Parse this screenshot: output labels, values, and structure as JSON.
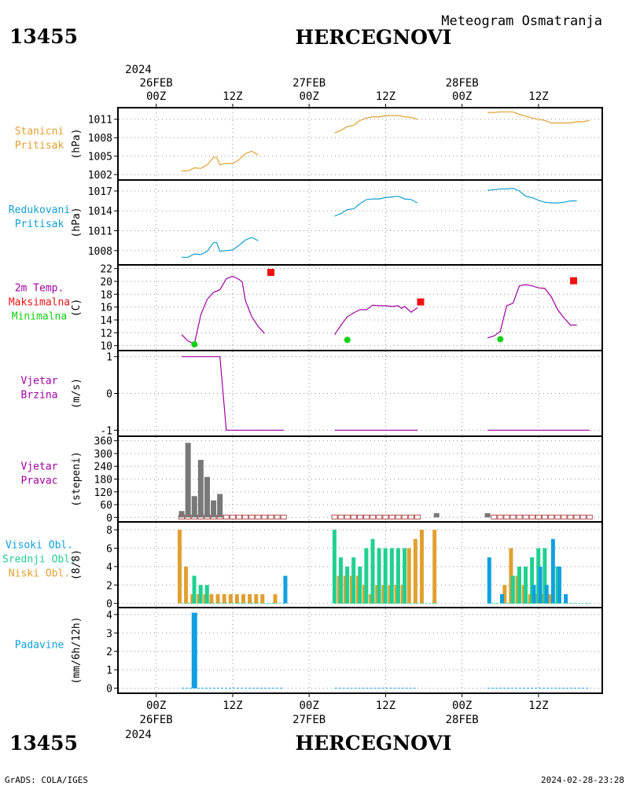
{
  "header": {
    "station_id": "13455",
    "station_name": "HERCEGNOVI",
    "product": "Meteogram Osmatranja"
  },
  "footer": {
    "station_id": "13455",
    "station_name": "HERCEGNOVI",
    "credit": "GrADS: COLA/IGES",
    "timestamp": "2024-02-28-23:28"
  },
  "time_axis": {
    "year": "2024",
    "top_ticks": [
      {
        "hour": 0,
        "hour_label": "00Z",
        "date_label": "26FEB"
      },
      {
        "hour": 12,
        "hour_label": "12Z",
        "date_label": ""
      },
      {
        "hour": 24,
        "hour_label": "00Z",
        "date_label": "27FEB"
      },
      {
        "hour": 36,
        "hour_label": "12Z",
        "date_label": ""
      },
      {
        "hour": 48,
        "hour_label": "00Z",
        "date_label": "28FEB"
      },
      {
        "hour": 60,
        "hour_label": "12Z",
        "date_label": ""
      }
    ]
  },
  "colors": {
    "station_pressure": "#e0a030",
    "reduced_pressure": "#10a0d0",
    "temperature": "#a000a0",
    "tmax": "#f01010",
    "tmin": "#10d010",
    "wind": "#a000a0",
    "wind_dir": "#787878",
    "wind_dir_calm": "#b05050",
    "high_cloud": "#10a0e0",
    "mid_cloud": "#20d090",
    "low_cloud": "#e0a030",
    "precip": "#10a0e0"
  },
  "chart_data": [
    {
      "type": "line",
      "panel_labels": [
        {
          "text": "Stanicni",
          "color": "#e0a030"
        },
        {
          "text": "Pritisak",
          "color": "#e0a030"
        }
      ],
      "ylabel": "(hPa)",
      "ylim": [
        1001.5,
        1012.5
      ],
      "yticks": [
        1002,
        1005,
        1008,
        1011
      ],
      "color": "#e0a030",
      "segments": [
        [
          [
            4,
            1002.6
          ],
          [
            5,
            1002.6
          ],
          [
            6,
            1003.1
          ],
          [
            7,
            1003.0
          ],
          [
            8,
            1003.6
          ],
          [
            9,
            1004.8
          ],
          [
            9.5,
            1004.8
          ],
          [
            10,
            1003.6
          ],
          [
            11,
            1003.8
          ],
          [
            12,
            1003.8
          ],
          [
            13,
            1004.4
          ],
          [
            14,
            1005.4
          ],
          [
            15,
            1005.8
          ],
          [
            16,
            1005.2
          ]
        ],
        [
          [
            28,
            1008.8
          ],
          [
            29,
            1009.2
          ],
          [
            30,
            1009.8
          ],
          [
            31,
            1010.0
          ],
          [
            32,
            1010.8
          ],
          [
            33,
            1011.2
          ],
          [
            34,
            1011.4
          ],
          [
            35,
            1011.4
          ],
          [
            36,
            1011.6
          ],
          [
            37,
            1011.6
          ],
          [
            38,
            1011.6
          ],
          [
            39,
            1011.4
          ],
          [
            40,
            1011.3
          ],
          [
            41,
            1011.0
          ]
        ],
        [
          [
            52,
            1012.1
          ],
          [
            53,
            1012.1
          ],
          [
            54,
            1012.2
          ],
          [
            55,
            1012.2
          ],
          [
            56,
            1012.2
          ],
          [
            57,
            1011.8
          ],
          [
            58,
            1011.5
          ],
          [
            59,
            1011.2
          ],
          [
            60,
            1011.0
          ],
          [
            61,
            1010.8
          ],
          [
            62,
            1010.4
          ],
          [
            63,
            1010.4
          ],
          [
            64,
            1010.4
          ],
          [
            65,
            1010.4
          ],
          [
            66,
            1010.6
          ],
          [
            67,
            1010.6
          ],
          [
            68,
            1010.8
          ]
        ]
      ]
    },
    {
      "type": "line",
      "panel_labels": [
        {
          "text": "Redukovani",
          "color": "#10a0d0"
        },
        {
          "text": "Pritisak",
          "color": "#10a0d0"
        }
      ],
      "ylabel": "(hPa)",
      "ylim": [
        1006.2,
        1018.3
      ],
      "yticks": [
        1008,
        1011,
        1014,
        1017
      ],
      "color": "#10a0d0",
      "segments": [
        [
          [
            4,
            1007.0
          ],
          [
            5,
            1007.0
          ],
          [
            6,
            1007.5
          ],
          [
            7,
            1007.4
          ],
          [
            8,
            1007.9
          ],
          [
            9,
            1009.2
          ],
          [
            9.5,
            1009.2
          ],
          [
            10,
            1007.9
          ],
          [
            11,
            1008.0
          ],
          [
            12,
            1008.1
          ],
          [
            13,
            1008.8
          ],
          [
            14,
            1009.6
          ],
          [
            15,
            1010.0
          ],
          [
            16,
            1009.5
          ]
        ],
        [
          [
            28,
            1013.2
          ],
          [
            29,
            1013.6
          ],
          [
            30,
            1014.2
          ],
          [
            31,
            1014.3
          ],
          [
            32,
            1015.1
          ],
          [
            33,
            1015.7
          ],
          [
            34,
            1015.8
          ],
          [
            35,
            1015.8
          ],
          [
            36,
            1016.0
          ],
          [
            37,
            1016.1
          ],
          [
            38,
            1016.2
          ],
          [
            39,
            1015.8
          ],
          [
            40,
            1015.7
          ],
          [
            41,
            1015.2
          ]
        ],
        [
          [
            52,
            1017.1
          ],
          [
            53,
            1017.2
          ],
          [
            54,
            1017.3
          ],
          [
            55,
            1017.3
          ],
          [
            56,
            1017.4
          ],
          [
            57,
            1017.0
          ],
          [
            58,
            1016.2
          ],
          [
            59,
            1016.0
          ],
          [
            60,
            1015.6
          ],
          [
            61,
            1015.3
          ],
          [
            62,
            1015.2
          ],
          [
            63,
            1015.2
          ],
          [
            64,
            1015.3
          ],
          [
            65,
            1015.5
          ],
          [
            66,
            1015.5
          ]
        ]
      ]
    },
    {
      "type": "line",
      "panel_labels": [
        {
          "text": "2m Temp.",
          "color": "#a000a0"
        },
        {
          "text": "Maksimalna",
          "color": "#f01010"
        },
        {
          "text": "Minimalna",
          "color": "#10d010"
        }
      ],
      "ylabel": "(C)",
      "ylim": [
        9.6,
        22.2
      ],
      "yticks": [
        10,
        12,
        14,
        16,
        18,
        20,
        22
      ],
      "color": "#a000a0",
      "segments": [
        [
          [
            4,
            11.7
          ],
          [
            5,
            10.7
          ],
          [
            6,
            10.3
          ],
          [
            7,
            14.8
          ],
          [
            8,
            17.2
          ],
          [
            9,
            18.3
          ],
          [
            10,
            18.7
          ],
          [
            11,
            20.4
          ],
          [
            12,
            20.8
          ],
          [
            13,
            20.3
          ],
          [
            13.5,
            19.9
          ],
          [
            14,
            17.0
          ],
          [
            15,
            14.5
          ],
          [
            16,
            13.0
          ],
          [
            17,
            11.9
          ]
        ],
        [
          [
            28,
            11.7
          ],
          [
            29,
            13.2
          ],
          [
            30,
            14.5
          ],
          [
            31,
            15.1
          ],
          [
            32,
            15.6
          ],
          [
            33,
            15.6
          ],
          [
            34,
            16.3
          ],
          [
            35,
            16.2
          ],
          [
            36,
            16.2
          ],
          [
            37,
            16.1
          ],
          [
            38,
            16.2
          ],
          [
            38.5,
            15.8
          ],
          [
            39,
            16.1
          ],
          [
            40,
            15.2
          ],
          [
            41,
            15.9
          ]
        ],
        [
          [
            52,
            11.2
          ],
          [
            53,
            11.5
          ],
          [
            54,
            12.2
          ],
          [
            55,
            16.2
          ],
          [
            56,
            16.6
          ],
          [
            57,
            19.3
          ],
          [
            58,
            19.5
          ],
          [
            59,
            19.3
          ],
          [
            60,
            19.0
          ],
          [
            61,
            18.9
          ],
          [
            62,
            17.6
          ],
          [
            63,
            15.6
          ],
          [
            64,
            14.3
          ],
          [
            65,
            13.2
          ],
          [
            66,
            13.2
          ]
        ]
      ],
      "max_points": [
        [
          18,
          21.4
        ],
        [
          41.5,
          16.8
        ],
        [
          65.5,
          20.1
        ]
      ],
      "min_points": [
        [
          6,
          10.2
        ],
        [
          30,
          10.9
        ],
        [
          54,
          11.0
        ]
      ]
    },
    {
      "type": "line",
      "panel_labels": [
        {
          "text": "Vjetar",
          "color": "#a000a0"
        },
        {
          "text": "Brzina",
          "color": "#a000a0"
        }
      ],
      "ylabel": "(m/s)",
      "ylim": [
        -1.1,
        1.1
      ],
      "yticks": [
        -1,
        0,
        1
      ],
      "color": "#a000a0",
      "segments": [
        [
          [
            4,
            1
          ],
          [
            10,
            1
          ],
          [
            11,
            -1
          ],
          [
            20,
            -1
          ]
        ],
        [
          [
            28,
            -1
          ],
          [
            41,
            -1
          ]
        ],
        [
          [
            52,
            -1
          ],
          [
            68,
            -1
          ]
        ]
      ]
    },
    {
      "type": "bar",
      "panel_labels": [
        {
          "text": "Vjetar",
          "color": "#a000a0"
        },
        {
          "text": "Pravac",
          "color": "#a000a0"
        }
      ],
      "ylabel": "(stepeni)",
      "ylim": [
        -10,
        370
      ],
      "yticks": [
        0,
        60,
        120,
        180,
        240,
        300,
        360
      ],
      "color": "#787878",
      "calm_color": "#b05050",
      "bars": [
        [
          4,
          30
        ],
        [
          5,
          350
        ],
        [
          6,
          100
        ],
        [
          7,
          270
        ],
        [
          8,
          190
        ],
        [
          9,
          80
        ],
        [
          10,
          110
        ],
        [
          44,
          20
        ],
        [
          52,
          20
        ]
      ],
      "calm_hours": [
        4,
        5,
        6,
        7,
        8,
        9,
        10,
        11,
        12,
        13,
        14,
        15,
        16,
        17,
        18,
        19,
        20,
        28,
        29,
        30,
        31,
        32,
        33,
        34,
        35,
        36,
        37,
        38,
        39,
        40,
        41,
        53,
        54,
        55,
        56,
        57,
        58,
        59,
        60,
        61,
        62,
        63,
        64,
        65,
        66,
        67,
        68
      ]
    },
    {
      "type": "bar",
      "panel_labels": [
        {
          "text": "Visoki Obl.",
          "color": "#10a0e0"
        },
        {
          "text": "Srednji Obl.",
          "color": "#20d090"
        },
        {
          "text": "Niski Obl.",
          "color": "#e0a030"
        }
      ],
      "ylabel": "(8/8)",
      "ylim": [
        -0.2,
        8.6
      ],
      "yticks": [
        0,
        2,
        4,
        6,
        8
      ],
      "series": [
        {
          "name": "Visoki Obl.",
          "color": "#10a0e0",
          "points": [
            [
              20,
              3
            ],
            [
              52,
              5
            ],
            [
              54,
              1
            ],
            [
              59,
              2
            ],
            [
              60,
              4
            ],
            [
              61,
              2
            ],
            [
              62,
              7
            ],
            [
              63,
              4
            ],
            [
              64,
              1
            ]
          ]
        },
        {
          "name": "Srednji Obl.",
          "color": "#20d090",
          "points": [
            [
              6,
              3
            ],
            [
              7,
              2
            ],
            [
              8,
              2
            ],
            [
              28,
              8
            ],
            [
              29,
              5
            ],
            [
              30,
              4
            ],
            [
              31,
              5
            ],
            [
              32,
              4
            ],
            [
              33,
              6
            ],
            [
              34,
              7
            ],
            [
              35,
              6
            ],
            [
              36,
              6
            ],
            [
              37,
              6
            ],
            [
              38,
              6
            ],
            [
              39,
              6
            ],
            [
              56,
              3
            ],
            [
              57,
              4
            ],
            [
              58,
              4
            ],
            [
              59,
              5
            ],
            [
              60,
              6
            ],
            [
              61,
              6
            ],
            [
              63,
              4
            ]
          ]
        },
        {
          "name": "Niski Obl.",
          "color": "#e0a030",
          "points": [
            [
              4,
              8
            ],
            [
              5,
              4
            ],
            [
              6,
              1
            ],
            [
              7,
              1
            ],
            [
              8,
              1
            ],
            [
              9,
              1
            ],
            [
              10,
              1
            ],
            [
              11,
              1
            ],
            [
              12,
              1
            ],
            [
              13,
              1
            ],
            [
              14,
              1
            ],
            [
              15,
              1
            ],
            [
              16,
              1
            ],
            [
              17,
              1
            ],
            [
              19,
              1
            ],
            [
              29,
              3
            ],
            [
              30,
              3
            ],
            [
              31,
              3
            ],
            [
              32,
              3
            ],
            [
              33,
              2
            ],
            [
              34,
              1
            ],
            [
              35,
              2
            ],
            [
              36,
              2
            ],
            [
              37,
              2
            ],
            [
              38,
              2
            ],
            [
              39,
              2
            ],
            [
              40,
              6
            ],
            [
              41,
              7
            ],
            [
              42,
              8
            ],
            [
              44,
              8
            ],
            [
              55,
              2
            ],
            [
              56,
              6
            ],
            [
              57,
              3
            ],
            [
              58,
              2
            ],
            [
              59,
              1
            ],
            [
              60,
              1
            ],
            [
              61,
              1
            ],
            [
              62,
              1
            ]
          ]
        }
      ]
    },
    {
      "type": "bar",
      "panel_labels": [
        {
          "text": "Padavine",
          "color": "#10a0e0"
        }
      ],
      "ylabel": "(mm/6h/12h)",
      "ylim": [
        -0.15,
        4.25
      ],
      "yticks": [
        0,
        1,
        2,
        3,
        4
      ],
      "color": "#10a0e0",
      "bars": [
        [
          6,
          4.1
        ]
      ],
      "zero_segments": [
        [
          4,
          20
        ],
        [
          28,
          41
        ],
        [
          52,
          68
        ]
      ]
    }
  ]
}
